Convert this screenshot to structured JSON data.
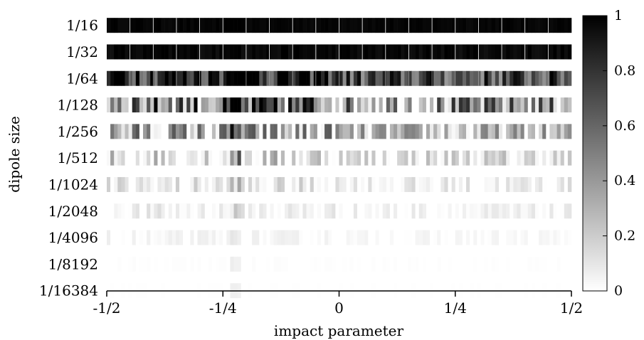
{
  "chart_data": {
    "type": "heatmap",
    "title": "",
    "xlabel": "impact parameter",
    "ylabel": "dipole size",
    "xlim": [
      -0.5,
      0.5
    ],
    "x_ticks": [
      {
        "value": -0.5,
        "label": "-1/2"
      },
      {
        "value": -0.25,
        "label": "-1/4"
      },
      {
        "value": 0,
        "label": "0"
      },
      {
        "value": 0.25,
        "label": "1/4"
      },
      {
        "value": 0.5,
        "label": "1/2"
      }
    ],
    "rows": [
      {
        "label": "1/16",
        "base": 0.98,
        "variation": 0.02
      },
      {
        "label": "1/32",
        "base": 0.97,
        "variation": 0.04
      },
      {
        "label": "1/64",
        "base": 0.8,
        "variation": 0.38
      },
      {
        "label": "1/128",
        "base": 0.45,
        "variation": 0.55
      },
      {
        "label": "1/256",
        "base": 0.22,
        "variation": 0.4
      },
      {
        "label": "1/512",
        "base": 0.1,
        "variation": 0.26
      },
      {
        "label": "1/1024",
        "base": 0.05,
        "variation": 0.14
      },
      {
        "label": "1/2048",
        "base": 0.03,
        "variation": 0.09
      },
      {
        "label": "1/4096",
        "base": 0.01,
        "variation": 0.05
      },
      {
        "label": "1/8192",
        "base": 0.0,
        "variation": 0.01
      },
      {
        "label": "1/16384",
        "base": 0.0,
        "variation": 0.005
      }
    ],
    "hotspot_x": -0.22,
    "columns": 128,
    "colorbar": {
      "range": [
        0,
        1
      ],
      "ticks": [
        {
          "value": 0,
          "label": "0"
        },
        {
          "value": 0.2,
          "label": "0.2"
        },
        {
          "value": 0.4,
          "label": "0.4"
        },
        {
          "value": 0.6,
          "label": "0.6"
        },
        {
          "value": 0.8,
          "label": "0.8"
        },
        {
          "value": 1,
          "label": "1"
        }
      ],
      "colormap": [
        "#ffffff",
        "#000000"
      ]
    }
  }
}
